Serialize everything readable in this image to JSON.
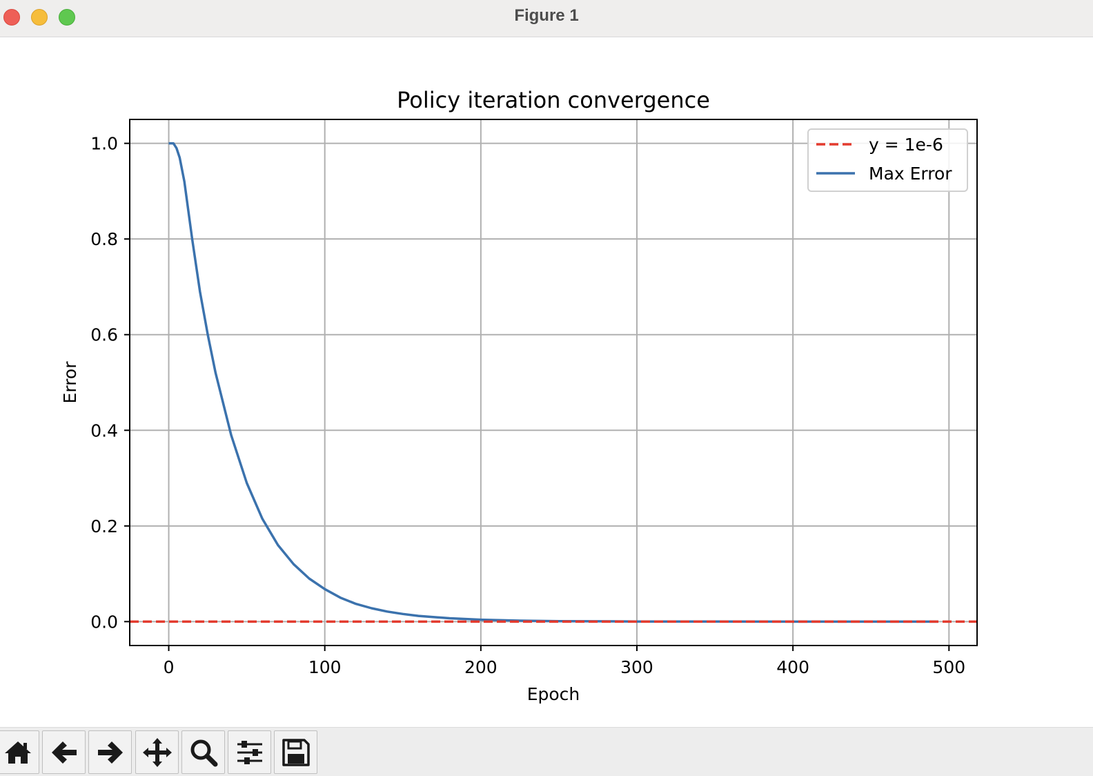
{
  "window": {
    "title": "Figure 1"
  },
  "toolbar": {
    "buttons": [
      {
        "name": "home-button",
        "icon": "home-icon"
      },
      {
        "name": "back-button",
        "icon": "arrow-left-icon"
      },
      {
        "name": "forward-button",
        "icon": "arrow-right-icon"
      },
      {
        "name": "pan-button",
        "icon": "move-icon"
      },
      {
        "name": "zoom-button",
        "icon": "search-icon"
      },
      {
        "name": "configure-subplots-button",
        "icon": "sliders-icon"
      },
      {
        "name": "save-button",
        "icon": "floppy-disk-icon"
      }
    ]
  },
  "chart_data": {
    "type": "line",
    "title": "Policy iteration convergence",
    "xlabel": "Epoch",
    "ylabel": "Error",
    "xlim": [
      -25,
      518
    ],
    "ylim": [
      -0.05,
      1.05
    ],
    "xticks": [
      0,
      100,
      200,
      300,
      400,
      500
    ],
    "yticks": [
      0.0,
      0.2,
      0.4,
      0.6,
      0.8,
      1.0
    ],
    "xtick_labels": [
      "0",
      "100",
      "200",
      "300",
      "400",
      "500"
    ],
    "ytick_labels": [
      "0.0",
      "0.2",
      "0.4",
      "0.6",
      "0.8",
      "1.0"
    ],
    "grid": true,
    "legend_position": "top-right",
    "series": [
      {
        "name": "Max Error",
        "style": "solid",
        "color": "#3b72ad",
        "x": [
          0,
          3,
          5,
          7,
          10,
          15,
          20,
          25,
          30,
          40,
          50,
          60,
          70,
          80,
          90,
          100,
          110,
          120,
          130,
          140,
          150,
          160,
          180,
          200,
          225,
          250,
          300,
          350,
          400,
          450,
          493
        ],
        "y": [
          1.0,
          1.0,
          0.99,
          0.97,
          0.92,
          0.8,
          0.69,
          0.6,
          0.52,
          0.39,
          0.29,
          0.215,
          0.16,
          0.12,
          0.09,
          0.068,
          0.05,
          0.037,
          0.028,
          0.021,
          0.016,
          0.012,
          0.007,
          0.004,
          0.002,
          0.001,
          0.0003,
          0.0001,
          0.0,
          0.0,
          0.0
        ]
      },
      {
        "name": "y = 1e-6",
        "style": "dashed",
        "color": "#e33b2e",
        "x": [
          -25,
          518
        ],
        "y": [
          1e-06,
          1e-06
        ]
      }
    ],
    "legend_order": [
      "y = 1e-6",
      "Max Error"
    ]
  }
}
